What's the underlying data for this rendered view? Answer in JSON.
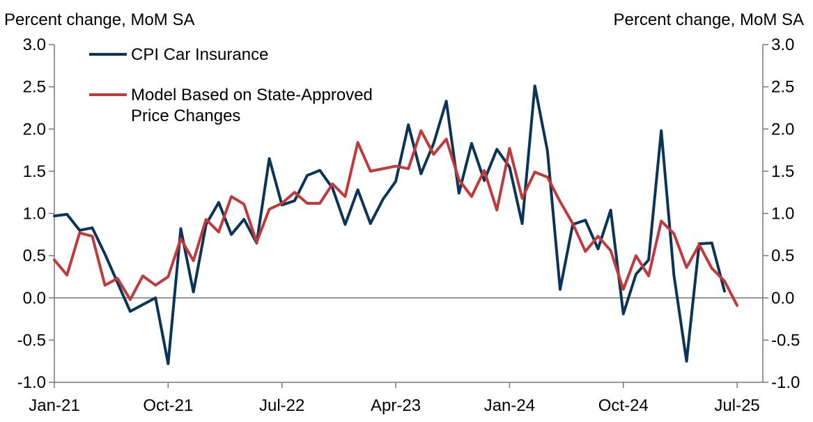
{
  "chart_data": {
    "type": "line",
    "title": "",
    "ylabel_left": "Percent change, MoM SA",
    "ylabel_right": "Percent change, MoM SA",
    "ylim": [
      -1.0,
      3.0
    ],
    "y_ticks": [
      "3.0",
      "2.5",
      "2.0",
      "1.5",
      "1.0",
      "0.5",
      "0.0",
      "-0.5",
      "-1.0"
    ],
    "y_tick_values": [
      3.0,
      2.5,
      2.0,
      1.5,
      1.0,
      0.5,
      0.0,
      -0.5,
      -1.0
    ],
    "x_tick_labels": [
      "Jan-21",
      "Oct-21",
      "Jul-22",
      "Apr-23",
      "Jan-24",
      "Oct-24",
      "Jul-25"
    ],
    "x_tick_dates": [
      "2021-01",
      "2021-10",
      "2022-07",
      "2023-04",
      "2024-01",
      "2024-10",
      "2025-07"
    ],
    "legend_position": "top-left",
    "grid": false,
    "x_start": "2021-01",
    "series": [
      {
        "name": "CPI Car Insurance",
        "color": "#0b3558",
        "values": [
          0.97,
          0.99,
          0.8,
          0.83,
          0.52,
          0.18,
          -0.16,
          -0.08,
          0.0,
          -0.78,
          0.82,
          0.07,
          0.87,
          1.13,
          0.75,
          0.93,
          0.65,
          1.65,
          1.1,
          1.15,
          1.45,
          1.51,
          1.3,
          0.87,
          1.28,
          0.88,
          1.17,
          1.38,
          2.05,
          1.47,
          1.83,
          2.33,
          1.24,
          1.83,
          1.39,
          1.76,
          1.55,
          0.88,
          2.51,
          1.74,
          0.1,
          0.87,
          0.92,
          0.58,
          1.04,
          -0.19,
          0.28,
          0.45,
          1.98,
          0.27,
          -0.75,
          0.64,
          0.65,
          0.08
        ]
      },
      {
        "name": "Model Based on State-Approved Price Changes",
        "color": "#c0393b",
        "values": [
          0.45,
          0.27,
          0.77,
          0.73,
          0.15,
          0.23,
          -0.02,
          0.26,
          0.15,
          0.25,
          0.7,
          0.44,
          0.93,
          0.78,
          1.2,
          1.11,
          0.66,
          1.05,
          1.12,
          1.25,
          1.12,
          1.12,
          1.35,
          1.2,
          1.84,
          1.5,
          1.53,
          1.56,
          1.53,
          1.98,
          1.7,
          1.88,
          1.4,
          1.2,
          1.51,
          1.04,
          1.77,
          1.18,
          1.49,
          1.43,
          1.14,
          0.88,
          0.55,
          0.73,
          0.56,
          0.1,
          0.5,
          0.26,
          0.91,
          0.76,
          0.36,
          0.63,
          0.35,
          0.2,
          -0.09
        ]
      }
    ]
  }
}
